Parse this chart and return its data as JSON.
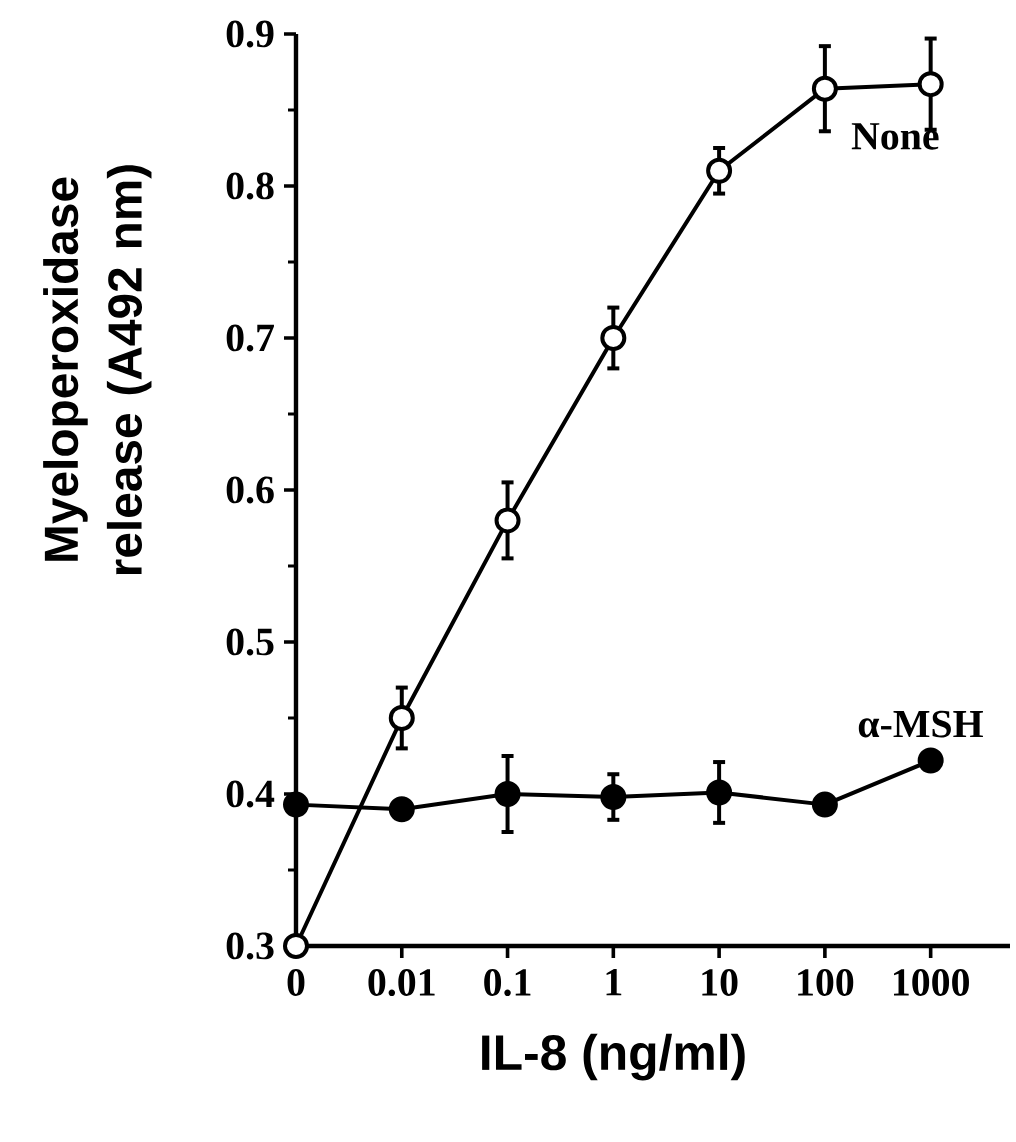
{
  "chart_data": {
    "type": "line",
    "xlabel": "IL-8 (ng/ml)",
    "ylabel": "Myeloperoxidase release (A492 nm)",
    "categories": [
      "0",
      "0.01",
      "0.1",
      "1",
      "10",
      "100",
      "1000"
    ],
    "series": [
      {
        "name": "None",
        "color": "#ffffff",
        "values": [
          0.3,
          0.45,
          0.58,
          0.7,
          0.81,
          0.864,
          0.867
        ],
        "errors": [
          null,
          0.02,
          0.025,
          0.02,
          0.015,
          0.028,
          0.03
        ]
      },
      {
        "name": "α-MSH",
        "color": "#000000",
        "values": [
          0.393,
          0.39,
          0.4,
          0.398,
          0.401,
          0.393,
          0.422
        ],
        "errors": [
          null,
          null,
          0.025,
          0.015,
          0.02,
          null,
          null
        ]
      }
    ],
    "ylim": [
      0.3,
      0.9
    ],
    "yticks": [
      0.3,
      0.4,
      0.5,
      0.6,
      0.7,
      0.8,
      0.9
    ],
    "grid": false,
    "marker": "circle",
    "line_style": "solid"
  }
}
